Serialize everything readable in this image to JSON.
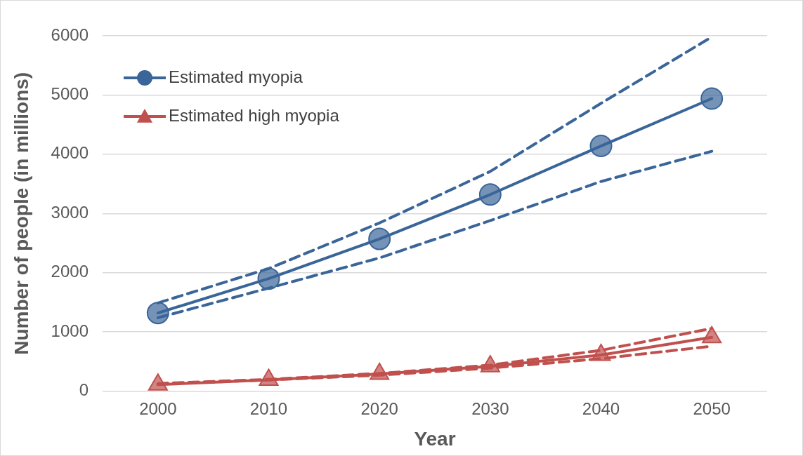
{
  "chart_data": {
    "type": "line",
    "xlabel": "Year",
    "ylabel": "Number of people (in millions)",
    "categories": [
      "2000",
      "2010",
      "2020",
      "2030",
      "2040",
      "2050"
    ],
    "series": [
      {
        "name": "Estimated myopia",
        "color": "#3a6599",
        "values": [
          1320,
          1900,
          2570,
          3320,
          4140,
          4940
        ],
        "marker": "circle",
        "line_style": "solid"
      },
      {
        "name": "Estimated high myopia",
        "color": "#c0504d",
        "values": [
          110,
          190,
          290,
          420,
          610,
          910
        ],
        "marker": "triangle",
        "line_style": "solid"
      },
      {
        "color": "#3a6599",
        "values": [
          1490,
          2070,
          2840,
          3710,
          4860,
          5980
        ],
        "marker": "none",
        "line_style": "dashed"
      },
      {
        "color": "#3a6599",
        "values": [
          1240,
          1740,
          2250,
          2880,
          3540,
          4050
        ],
        "marker": "none",
        "line_style": "dashed"
      },
      {
        "color": "#c0504d",
        "values": [
          130,
          200,
          300,
          440,
          690,
          1060
        ],
        "marker": "none",
        "line_style": "dashed"
      },
      {
        "color": "#c0504d",
        "values": [
          120,
          190,
          270,
          390,
          550,
          760
        ],
        "marker": "none",
        "line_style": "dashed"
      }
    ],
    "ylim": [
      0,
      6000
    ],
    "yticks": [
      0,
      1000,
      2000,
      3000,
      4000,
      5000,
      6000
    ],
    "grid": "y",
    "legend": "top left"
  }
}
